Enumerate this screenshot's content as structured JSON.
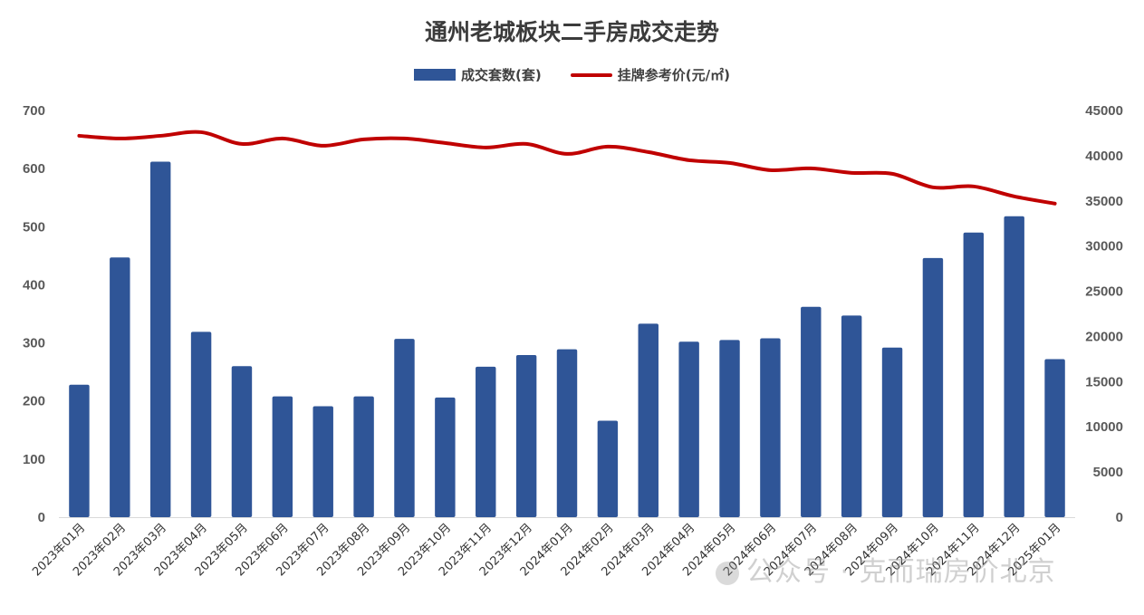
{
  "chart_data": {
    "type": "bar",
    "title": "通州老城板块二手房成交走势",
    "categories": [
      "2023年01月",
      "2023年02月",
      "2023年03月",
      "2023年04月",
      "2023年05月",
      "2023年06月",
      "2023年07月",
      "2023年08月",
      "2023年09月",
      "2023年10月",
      "2023年11月",
      "2023年12月",
      "2024年01月",
      "2024年02月",
      "2024年03月",
      "2024年04月",
      "2024年05月",
      "2024年06月",
      "2024年07月",
      "2024年08月",
      "2024年09月",
      "2024年10月",
      "2024年11月",
      "2024年12月",
      "2025年01月"
    ],
    "series": [
      {
        "name": "成交套数(套)",
        "type": "bar",
        "axis": "left",
        "color": "#2f5597",
        "values": [
          228,
          447,
          612,
          319,
          260,
          208,
          191,
          208,
          307,
          206,
          259,
          279,
          289,
          166,
          333,
          302,
          305,
          308,
          362,
          347,
          292,
          446,
          490,
          518,
          272
        ]
      },
      {
        "name": "挂牌参考价(元/㎡)",
        "type": "line",
        "axis": "right",
        "color": "#c00000",
        "values": [
          42200,
          41900,
          42200,
          42600,
          41300,
          41900,
          41100,
          41800,
          41900,
          41400,
          40900,
          41300,
          40200,
          41000,
          40400,
          39500,
          39200,
          38400,
          38600,
          38100,
          38000,
          36500,
          36600,
          35500,
          34700
        ]
      }
    ],
    "y_left": {
      "min": 0,
      "max": 700,
      "ticks": [
        0,
        100,
        200,
        300,
        400,
        500,
        600,
        700
      ]
    },
    "y_right": {
      "min": 0,
      "max": 45000,
      "ticks": [
        0,
        5000,
        10000,
        15000,
        20000,
        25000,
        30000,
        35000,
        40000,
        45000
      ]
    },
    "grid": false,
    "legend_position": "top"
  },
  "watermark": "公众号 · 克而瑞房价北京"
}
